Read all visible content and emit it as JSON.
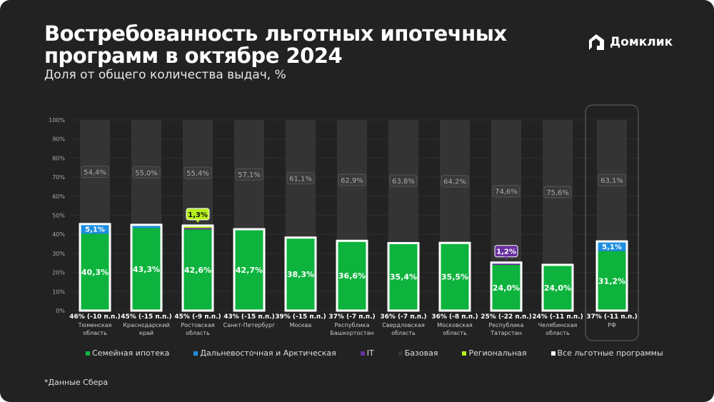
{
  "title": "Востребованность льготных ипотечных программ в октябре 2024",
  "subtitle": "Доля от общего количества выдач, %",
  "logo": "Домклик",
  "footnote": "*Данные Сбера",
  "colors": {
    "family": "#0db33d",
    "fareast": "#1e8fe0",
    "it": "#6a2fa0",
    "base": "#343434",
    "regional": "#b6f01e",
    "total_outline": "#ffffff",
    "background": "#222222"
  },
  "chart_data": {
    "type": "bar",
    "stacked": true,
    "ylim": [
      0,
      100
    ],
    "yticks": [
      "0%",
      "10%",
      "20%",
      "30%",
      "40%",
      "50%",
      "60%",
      "70%",
      "80%",
      "90%",
      "100%"
    ],
    "grid": true,
    "legend_position": "bottom",
    "legend": [
      "Семейная ипотека",
      "Дальневосточная и Арктическая",
      "IT",
      "Базовая",
      "Региональная",
      "Все льготные программы"
    ],
    "categories": [
      {
        "name": "Тюменская область",
        "family": 40.3,
        "fareast": 5.1,
        "it": 0,
        "regional": 0,
        "base": 54.4,
        "total_label": "46% (-10 п.п.)",
        "labels": {
          "family": "40,3%",
          "fareast": "5,1%",
          "base": "54,4%"
        }
      },
      {
        "name": "Краснодарский край",
        "family": 43.3,
        "fareast": 1.2,
        "it": 0.5,
        "regional": 0,
        "base": 55.0,
        "total_label": "45% (-15 п.п.)",
        "labels": {
          "family": "43,3%",
          "base": "55,0%"
        }
      },
      {
        "name": "Ростовская область",
        "family": 42.6,
        "fareast": 0,
        "it": 0.7,
        "regional": 1.3,
        "base": 55.4,
        "total_label": "45% (-9 п.п.)",
        "labels": {
          "family": "42,6%",
          "regional": "1,3%",
          "base": "55,4%"
        }
      },
      {
        "name": "Санкт-Петербург",
        "family": 42.7,
        "fareast": 0,
        "it": 0,
        "regional": 0,
        "base": 57.1,
        "total_label": "43% (-15 п.п.)",
        "labels": {
          "family": "42,7%",
          "base": "57,1%"
        }
      },
      {
        "name": "Москва",
        "family": 38.3,
        "fareast": 0,
        "it": 0,
        "regional": 0,
        "base": 61.1,
        "total_label": "39% (-15 п.п.)",
        "labels": {
          "family": "38,3%",
          "base": "61,1%"
        }
      },
      {
        "name": "Республика Башкортостан",
        "family": 36.6,
        "fareast": 0,
        "it": 0,
        "regional": 0,
        "base": 62.9,
        "total_label": "37% (-7 п.п.)",
        "labels": {
          "family": "36,6%",
          "base": "62,9%"
        }
      },
      {
        "name": "Свердловская область",
        "family": 35.4,
        "fareast": 0,
        "it": 0,
        "regional": 0,
        "base": 63.8,
        "total_label": "36% (-7 п.п.)",
        "labels": {
          "family": "35,4%",
          "base": "63,8%"
        }
      },
      {
        "name": "Московская область",
        "family": 35.5,
        "fareast": 0,
        "it": 0,
        "regional": 0,
        "base": 64.2,
        "total_label": "36% (-8 п.п.)",
        "labels": {
          "family": "35,5%",
          "base": "64,2%"
        }
      },
      {
        "name": "Республика Татарстан",
        "family": 24.0,
        "fareast": 0,
        "it": 1.2,
        "regional": 0,
        "base": 74.6,
        "total_label": "25% (-22 п.п.)",
        "labels": {
          "family": "24,0%",
          "it": "1,2%",
          "base": "74,6%"
        }
      },
      {
        "name": "Челябинская область",
        "family": 24.0,
        "fareast": 0,
        "it": 0,
        "regional": 0,
        "base": 75.6,
        "total_label": "24% (-11 п.п.)",
        "labels": {
          "family": "24,0%",
          "base": "75,6%"
        }
      },
      {
        "name": "РФ",
        "family": 31.2,
        "fareast": 5.1,
        "it": 0,
        "regional": 0,
        "base": 63.1,
        "total_label": "37% (-11 п.п.)",
        "labels": {
          "family": "31,2%",
          "fareast": "5,1%",
          "base": "63,1%"
        },
        "highlight": true
      }
    ]
  }
}
